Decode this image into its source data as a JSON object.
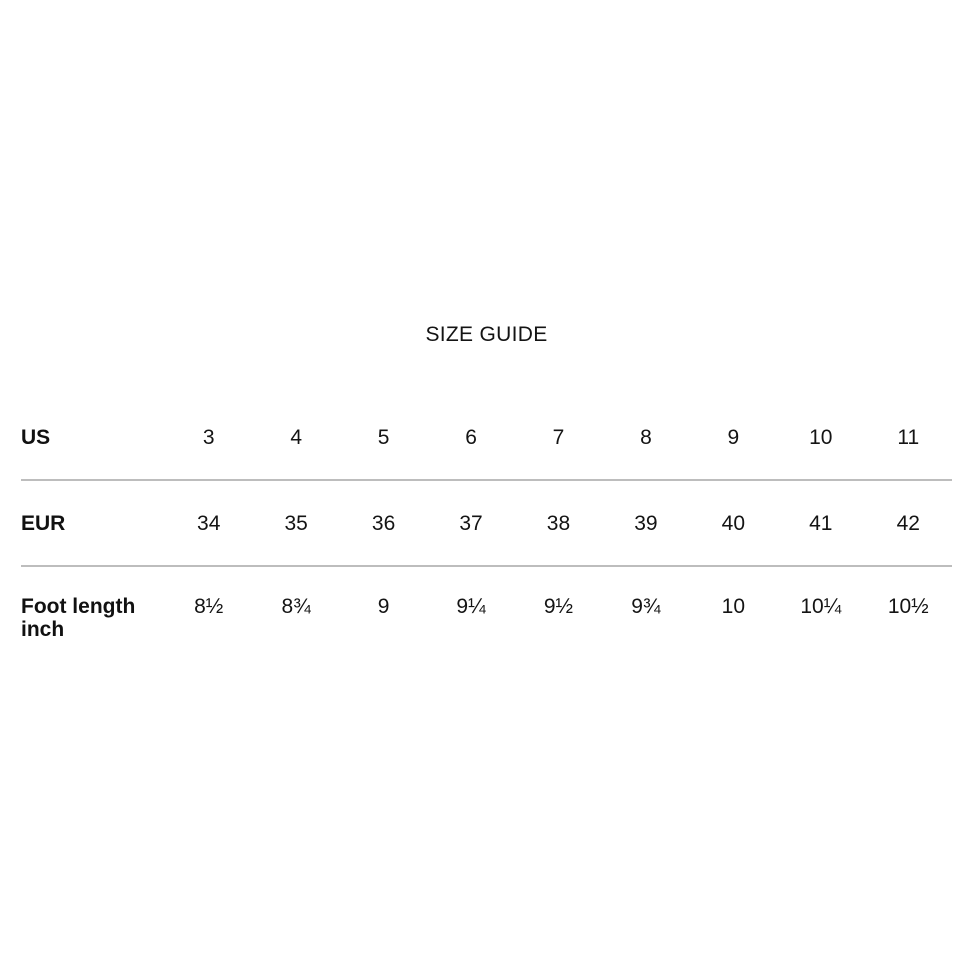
{
  "title": "SIZE GUIDE",
  "size_table": {
    "rows": [
      {
        "label": "US",
        "values": [
          "3",
          "4",
          "5",
          "6",
          "7",
          "8",
          "9",
          "10",
          "11"
        ]
      },
      {
        "label": "EUR",
        "values": [
          "34",
          "35",
          "36",
          "37",
          "38",
          "39",
          "40",
          "41",
          "42"
        ]
      },
      {
        "label": "Foot length inch",
        "values": [
          "8½",
          "8¾",
          "9",
          "9¼",
          "9½",
          "9¾",
          "10",
          "10¼",
          "10½"
        ]
      }
    ]
  },
  "colors": {
    "background": "#ffffff",
    "text": "#141414",
    "label_text": "#111111",
    "divider": "#bdbdbd"
  }
}
